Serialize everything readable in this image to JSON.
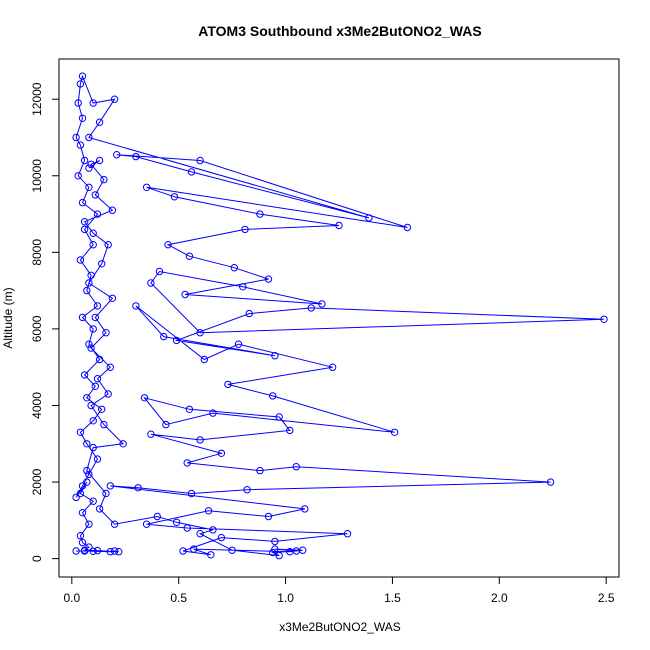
{
  "chart_data": {
    "type": "scatter",
    "title": "ATOM3 Southbound x3Me2ButONO2_WAS",
    "xlabel": "x3Me2ButONO2_WAS",
    "ylabel": "Altitude (m)",
    "xlim": [
      -0.06,
      2.56
    ],
    "ylim": [
      -480,
      13050
    ],
    "xticks": [
      0.0,
      0.5,
      1.0,
      1.5,
      2.0,
      2.5
    ],
    "xtick_labels": [
      "0.0",
      "0.5",
      "1.0",
      "1.5",
      "2.0",
      "2.5"
    ],
    "yticks": [
      0,
      2000,
      4000,
      6000,
      8000,
      10000,
      12000
    ],
    "ytick_labels": [
      "0",
      "2000",
      "4000",
      "6000",
      "8000",
      "10000",
      "12000"
    ],
    "grid": false,
    "line_color": "#0000ff",
    "marker": "open-circle",
    "series": [
      {
        "values": [
          [
            0.02,
            200
          ],
          [
            0.06,
            200
          ],
          [
            0.1,
            190
          ],
          [
            0.18,
            180
          ],
          [
            0.2,
            200
          ],
          [
            0.22,
            180
          ],
          [
            0.12,
            210
          ],
          [
            0.06,
            220
          ],
          [
            0.08,
            300
          ],
          [
            0.05,
            420
          ],
          [
            0.04,
            600
          ],
          [
            0.08,
            900
          ],
          [
            0.05,
            1200
          ],
          [
            0.1,
            1500
          ],
          [
            0.04,
            1700
          ],
          [
            0.07,
            2000
          ],
          [
            0.02,
            1600
          ],
          [
            0.05,
            1900
          ],
          [
            0.08,
            2200
          ],
          [
            0.12,
            2600
          ],
          [
            0.07,
            3000
          ],
          [
            0.04,
            3300
          ],
          [
            0.1,
            3600
          ],
          [
            0.14,
            3900
          ],
          [
            0.07,
            4200
          ],
          [
            0.11,
            4500
          ],
          [
            0.06,
            4800
          ],
          [
            0.13,
            5200
          ],
          [
            0.08,
            5600
          ],
          [
            0.1,
            6000
          ],
          [
            0.05,
            6300
          ],
          [
            0.12,
            6600
          ],
          [
            0.07,
            7000
          ],
          [
            0.09,
            7400
          ],
          [
            0.04,
            7800
          ],
          [
            0.1,
            8200
          ],
          [
            0.06,
            8600
          ],
          [
            0.12,
            9000
          ],
          [
            0.05,
            9300
          ],
          [
            0.08,
            9700
          ],
          [
            0.03,
            10000
          ],
          [
            0.06,
            10400
          ],
          [
            0.04,
            10800
          ],
          [
            0.02,
            11000
          ],
          [
            0.05,
            11500
          ],
          [
            0.03,
            11900
          ],
          [
            0.04,
            12400
          ],
          [
            0.05,
            12600
          ],
          [
            0.1,
            11900
          ],
          [
            0.2,
            12000
          ],
          [
            0.13,
            11400
          ],
          [
            0.08,
            11000
          ],
          [
            1.39,
            8900
          ],
          [
            0.56,
            10100
          ],
          [
            0.3,
            10500
          ],
          [
            0.21,
            10550
          ],
          [
            0.6,
            10400
          ],
          [
            1.57,
            8650
          ],
          [
            0.35,
            9700
          ],
          [
            0.48,
            9450
          ],
          [
            0.88,
            9000
          ],
          [
            1.25,
            8700
          ],
          [
            0.81,
            8600
          ],
          [
            0.45,
            8200
          ],
          [
            0.55,
            7900
          ],
          [
            0.76,
            7600
          ],
          [
            0.92,
            7300
          ],
          [
            0.53,
            6900
          ],
          [
            1.17,
            6650
          ],
          [
            0.8,
            7100
          ],
          [
            0.41,
            7500
          ],
          [
            0.37,
            7200
          ],
          [
            0.6,
            5900
          ],
          [
            2.49,
            6250
          ],
          [
            1.12,
            6550
          ],
          [
            0.83,
            6400
          ],
          [
            0.49,
            5700
          ],
          [
            0.95,
            5300
          ],
          [
            0.43,
            5800
          ],
          [
            0.3,
            6600
          ],
          [
            0.62,
            5200
          ],
          [
            0.78,
            5600
          ],
          [
            1.22,
            5000
          ],
          [
            0.73,
            4550
          ],
          [
            0.94,
            4250
          ],
          [
            1.51,
            3300
          ],
          [
            0.66,
            3800
          ],
          [
            0.44,
            3500
          ],
          [
            0.34,
            4200
          ],
          [
            0.55,
            3900
          ],
          [
            0.97,
            3700
          ],
          [
            1.02,
            3350
          ],
          [
            0.6,
            3100
          ],
          [
            0.37,
            3250
          ],
          [
            0.7,
            2750
          ],
          [
            0.54,
            2500
          ],
          [
            0.88,
            2300
          ],
          [
            1.05,
            2400
          ],
          [
            2.24,
            2000
          ],
          [
            0.82,
            1800
          ],
          [
            0.56,
            1700
          ],
          [
            0.31,
            1850
          ],
          [
            0.18,
            1900
          ],
          [
            1.09,
            1300
          ],
          [
            0.92,
            1100
          ],
          [
            0.64,
            1250
          ],
          [
            0.35,
            900
          ],
          [
            0.54,
            800
          ],
          [
            1.29,
            650
          ],
          [
            0.95,
            450
          ],
          [
            0.7,
            550
          ],
          [
            0.52,
            200
          ],
          [
            0.65,
            100
          ],
          [
            0.57,
            250
          ],
          [
            1.02,
            180
          ],
          [
            1.08,
            220
          ],
          [
            0.95,
            250
          ],
          [
            1.05,
            200
          ],
          [
            0.94,
            160
          ],
          [
            0.97,
            80
          ],
          [
            0.75,
            220
          ],
          [
            0.6,
            650
          ],
          [
            0.66,
            750
          ],
          [
            0.49,
            950
          ],
          [
            0.4,
            1100
          ],
          [
            0.2,
            900
          ],
          [
            0.13,
            1300
          ],
          [
            0.16,
            1700
          ],
          [
            0.07,
            2300
          ],
          [
            0.1,
            2900
          ],
          [
            0.24,
            3000
          ],
          [
            0.15,
            3500
          ],
          [
            0.09,
            4000
          ],
          [
            0.17,
            4300
          ],
          [
            0.12,
            4700
          ],
          [
            0.18,
            5000
          ],
          [
            0.09,
            5500
          ],
          [
            0.16,
            5900
          ],
          [
            0.11,
            6300
          ],
          [
            0.19,
            6800
          ],
          [
            0.08,
            7200
          ],
          [
            0.14,
            7700
          ],
          [
            0.17,
            8200
          ],
          [
            0.1,
            8500
          ],
          [
            0.06,
            8800
          ],
          [
            0.19,
            9100
          ],
          [
            0.11,
            9500
          ],
          [
            0.15,
            9900
          ],
          [
            0.09,
            10300
          ],
          [
            0.13,
            10400
          ],
          [
            0.08,
            10200
          ]
        ]
      }
    ]
  }
}
